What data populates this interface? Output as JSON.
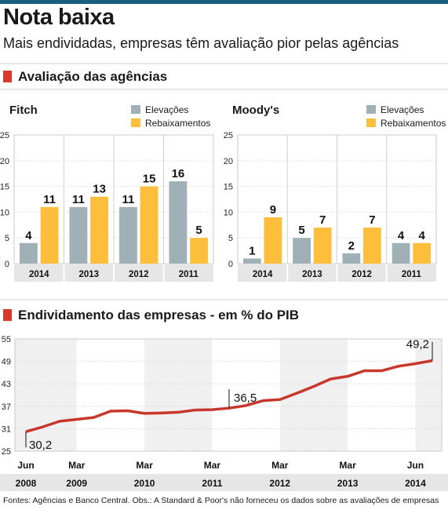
{
  "header": {
    "title": "Nota baixa",
    "subtitle": "Mais endividadas, empresas têm avaliação pior pelas agências"
  },
  "section_ratings": {
    "title": "Avaliação das agências"
  },
  "section_debt": {
    "title": "Endividamento das empresas - em % do PIB"
  },
  "colors": {
    "upgrades": "#9fb1b6",
    "downgrades": "#fdbe3c",
    "line": "#c8372b",
    "accent": "#d63a2a"
  },
  "chart_data": [
    {
      "type": "bar",
      "title": "Fitch",
      "categories": [
        "2014",
        "2013",
        "2012",
        "2011"
      ],
      "series": [
        {
          "name": "Elevações",
          "values": [
            4,
            11,
            11,
            16
          ]
        },
        {
          "name": "Rebaixamentos",
          "values": [
            11,
            13,
            15,
            5
          ]
        }
      ],
      "ylim": [
        0,
        25
      ],
      "yticks": [
        "0",
        "5",
        "10",
        "15",
        "20",
        "25"
      ],
      "legend": "top-right"
    },
    {
      "type": "bar",
      "title": "Moody's",
      "categories": [
        "2014",
        "2013",
        "2012",
        "2011"
      ],
      "series": [
        {
          "name": "Elevações",
          "values": [
            1,
            5,
            2,
            4
          ]
        },
        {
          "name": "Rebaixamentos",
          "values": [
            9,
            7,
            7,
            4
          ]
        }
      ],
      "ylim": [
        0,
        25
      ],
      "yticks": [
        "0",
        "5",
        "10",
        "15",
        "20",
        "25"
      ],
      "legend": "top-right"
    },
    {
      "type": "line",
      "title": "Endividamento das empresas - em % do PIB",
      "x": [
        "Jun 2008",
        "Set 2008",
        "Dez 2008",
        "Mar 2009",
        "Jun 2009",
        "Set 2009",
        "Dez 2009",
        "Mar 2010",
        "Jun 2010",
        "Set 2010",
        "Dez 2010",
        "Mar 2011",
        "Jun 2011",
        "Set 2011",
        "Dez 2011",
        "Mar 2012",
        "Jun 2012",
        "Set 2012",
        "Dez 2012",
        "Mar 2013",
        "Jun 2013",
        "Set 2013",
        "Dez 2013",
        "Mar 2014",
        "Jun 2014"
      ],
      "values": [
        30.2,
        31.5,
        33.0,
        33.5,
        34.0,
        35.7,
        35.8,
        35.1,
        35.2,
        35.4,
        36.0,
        36.1,
        36.5,
        37.2,
        38.5,
        38.8,
        40.5,
        42.3,
        44.3,
        45.0,
        46.5,
        46.5,
        47.7,
        48.4,
        49.2
      ],
      "ylim": [
        25,
        55
      ],
      "yticks": [
        "25",
        "31",
        "37",
        "43",
        "49",
        "55"
      ],
      "xtick_months": [
        "Jun",
        "Mar",
        "Mar",
        "Mar",
        "Mar",
        "Mar",
        "Jun"
      ],
      "xtick_years": [
        "2008",
        "2009",
        "2010",
        "2011",
        "2012",
        "2013",
        "2014"
      ],
      "annotations": [
        "30,2",
        "36,5",
        "49,2"
      ]
    }
  ],
  "footer": {
    "source": "Fontes: Agências e Banco Central. Obs.: A Standard & Poor's não forneceu os dados sobre as avaliações de empresas"
  }
}
